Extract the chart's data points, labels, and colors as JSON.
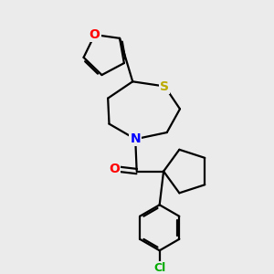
{
  "bg_color": "#ebebeb",
  "atom_colors": {
    "O": "#ff0000",
    "S": "#bbaa00",
    "N": "#0000ff",
    "Cl": "#00aa00",
    "C": "#000000"
  },
  "bond_color": "#000000",
  "bond_width": 1.6,
  "font_size_heteroatom": 10,
  "font_size_cl": 9,
  "figsize": [
    3.0,
    3.0
  ],
  "dpi": 100
}
